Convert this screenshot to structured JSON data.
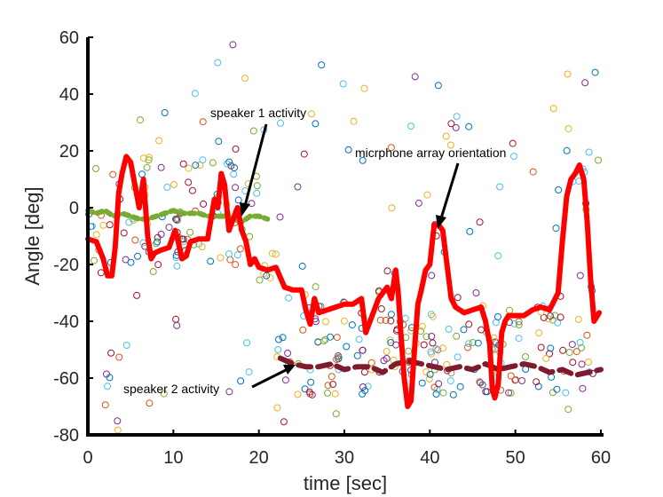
{
  "chart_data": {
    "type": "line",
    "title": "",
    "xlabel": "time [sec]",
    "ylabel": "Angle [deg]",
    "xlim": [
      0,
      60
    ],
    "ylim": [
      -80,
      60
    ],
    "xticks": [
      0,
      10,
      20,
      30,
      40,
      50,
      60
    ],
    "yticks": [
      60,
      40,
      20,
      0,
      -20,
      -40,
      -60,
      -80
    ],
    "grid": false,
    "colors": {
      "orientation": "#ff0000",
      "speaker1": "#77ac30",
      "speaker2": "#7e1b2e",
      "axis": "#000000",
      "scatter_palette": [
        "#0072bd",
        "#d95319",
        "#edb120",
        "#7e2f8e",
        "#77ac30",
        "#4dbeee",
        "#a2142f"
      ]
    },
    "series": [
      {
        "name": "micrphone array orientation",
        "style": "solid",
        "x": [
          0,
          1,
          1.8,
          2.3,
          2.8,
          3.2,
          3.6,
          4.0,
          4.5,
          5.0,
          5.5,
          6.0,
          6.5,
          7.0,
          7.4,
          7.8,
          8.5,
          9.5,
          10.2,
          10.5,
          11.0,
          11.5,
          12.0,
          13.0,
          14.0,
          14.8,
          15.2,
          15.6,
          16.0,
          16.5,
          17.0,
          17.5,
          18.0,
          18.5,
          19.0,
          19.5,
          20.0,
          21.0,
          22.0,
          23.0,
          24.0,
          25.0,
          25.5,
          26.0,
          26.5,
          27.0,
          28.0,
          29.0,
          30.0,
          31.0,
          32.0,
          32.5,
          33.0,
          34.0,
          35.0,
          35.5,
          36.0,
          36.3,
          36.6,
          37.0,
          37.4,
          37.8,
          38.2,
          38.6,
          39.0,
          39.5,
          40.0,
          40.5,
          41.0,
          41.5,
          42.0,
          42.5,
          43.0,
          44.0,
          45.0,
          46.0,
          46.5,
          47.0,
          47.3,
          47.6,
          48.0,
          48.4,
          48.8,
          49.2,
          50.0,
          51.0,
          52.0,
          53.0,
          54.0,
          55.0,
          55.5,
          56.0,
          56.5,
          57.0,
          57.5,
          58.0,
          58.4,
          58.8,
          59.2,
          59.6,
          59.8
        ],
        "y": [
          -11,
          -12,
          -18,
          -24,
          -24,
          -14,
          5,
          12,
          18,
          16,
          8,
          0,
          10,
          -10,
          -18,
          -16,
          -15,
          -14,
          -8,
          -11,
          -18,
          -17,
          -12,
          -11,
          -11,
          3,
          0,
          12,
          8,
          -8,
          -4,
          0,
          -8,
          -12,
          -20,
          -18,
          -21,
          -22,
          -21,
          -28,
          -29,
          -29,
          -36,
          -41,
          -32,
          -37,
          -36,
          -35,
          -34,
          -34,
          -32,
          -44,
          -40,
          -32,
          -28,
          -32,
          -22,
          -30,
          -44,
          -60,
          -70,
          -68,
          -50,
          -34,
          -29,
          -22,
          -20,
          -6,
          -6,
          -8,
          -20,
          -32,
          -35,
          -37,
          -36,
          -35,
          -40,
          -48,
          -64,
          -67,
          -62,
          -44,
          -40,
          -38,
          -38,
          -38,
          -36,
          -35,
          -36,
          -30,
          -12,
          4,
          10,
          12,
          15,
          10,
          -5,
          -25,
          -40,
          -38,
          -37
        ]
      },
      {
        "name": "speaker 1 activity",
        "style": "dashed",
        "x": [
          0,
          1,
          2,
          3,
          4,
          5,
          6,
          7,
          8,
          9,
          10,
          11,
          12,
          13,
          14,
          15,
          16,
          17,
          18,
          19,
          20,
          21
        ],
        "y": [
          -1,
          -2,
          -1,
          -3,
          -2,
          -3,
          -4,
          -4,
          -3,
          -2,
          -1,
          -2,
          -2,
          -2,
          -3,
          -3,
          -3,
          -4,
          -5,
          -3,
          -3,
          -4
        ]
      },
      {
        "name": "speaker 2 activity",
        "style": "dashed",
        "x": [
          22.5,
          24,
          25.5,
          27,
          28.5,
          30,
          31.5,
          33,
          34.5,
          36,
          37.5,
          39,
          40.5,
          42,
          43.5,
          45,
          46.5,
          48,
          49.5,
          51,
          52.5,
          54,
          55.5,
          57,
          58.5,
          60
        ],
        "y": [
          -53,
          -55,
          -56,
          -56,
          -55,
          -57,
          -56,
          -56,
          -58,
          -55,
          -54,
          -55,
          -56,
          -57,
          -56,
          -57,
          -55,
          -57,
          -56,
          -55,
          -56,
          -58,
          -57,
          -59,
          -58,
          -57
        ]
      }
    ],
    "annotations": {
      "speaker1": {
        "text": "speaker 1 activity",
        "target": [
          18,
          -1
        ]
      },
      "orientation": {
        "text": "micrphone array orientation",
        "target": [
          41,
          -6
        ]
      },
      "speaker2": {
        "text": "speaker 2 activity",
        "target": [
          24.5,
          -55
        ]
      }
    }
  }
}
